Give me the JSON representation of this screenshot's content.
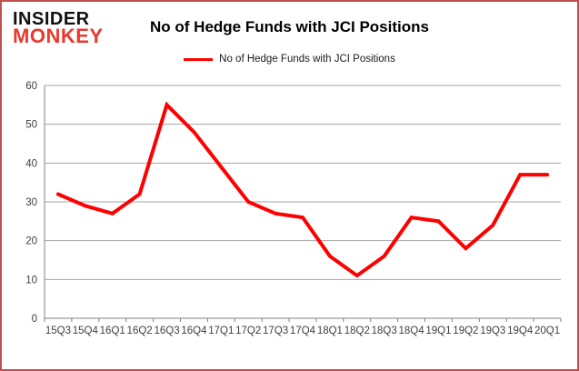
{
  "logo": {
    "line1": "INSIDER",
    "line2": "MONKEY"
  },
  "header": {
    "title": "No of Hedge Funds with JCI Positions"
  },
  "legend": {
    "label": "No of Hedge Funds with JCI Positions"
  },
  "colors": {
    "line": "#fe0000",
    "gridline": "#a6a6a6",
    "axis": "#808080",
    "tick_label": "#404040",
    "frame_border": "#c0504d",
    "logo_red": "#e8392f",
    "logo_black": "#111111"
  },
  "chart_data": {
    "type": "line",
    "title": "No of Hedge Funds with JCI Positions",
    "series": [
      {
        "name": "No of Hedge Funds with JCI Positions",
        "values": [
          32,
          29,
          27,
          32,
          55,
          48,
          39,
          30,
          27,
          26,
          16,
          11,
          16,
          26,
          25,
          18,
          24,
          37,
          37
        ],
        "color": "#fe0000"
      }
    ],
    "categories": [
      "15Q3",
      "15Q4",
      "16Q1",
      "16Q2",
      "16Q3",
      "16Q4",
      "17Q1",
      "17Q2",
      "17Q3",
      "17Q4",
      "18Q1",
      "18Q2",
      "18Q3",
      "18Q4",
      "19Q1",
      "19Q2",
      "19Q3",
      "19Q4",
      "20Q1"
    ],
    "xlabel": "",
    "ylabel": "",
    "ylim": [
      0,
      60
    ],
    "y_ticks": [
      0,
      10,
      20,
      30,
      40,
      50,
      60
    ],
    "grid": true,
    "legend_position": "top-center"
  }
}
